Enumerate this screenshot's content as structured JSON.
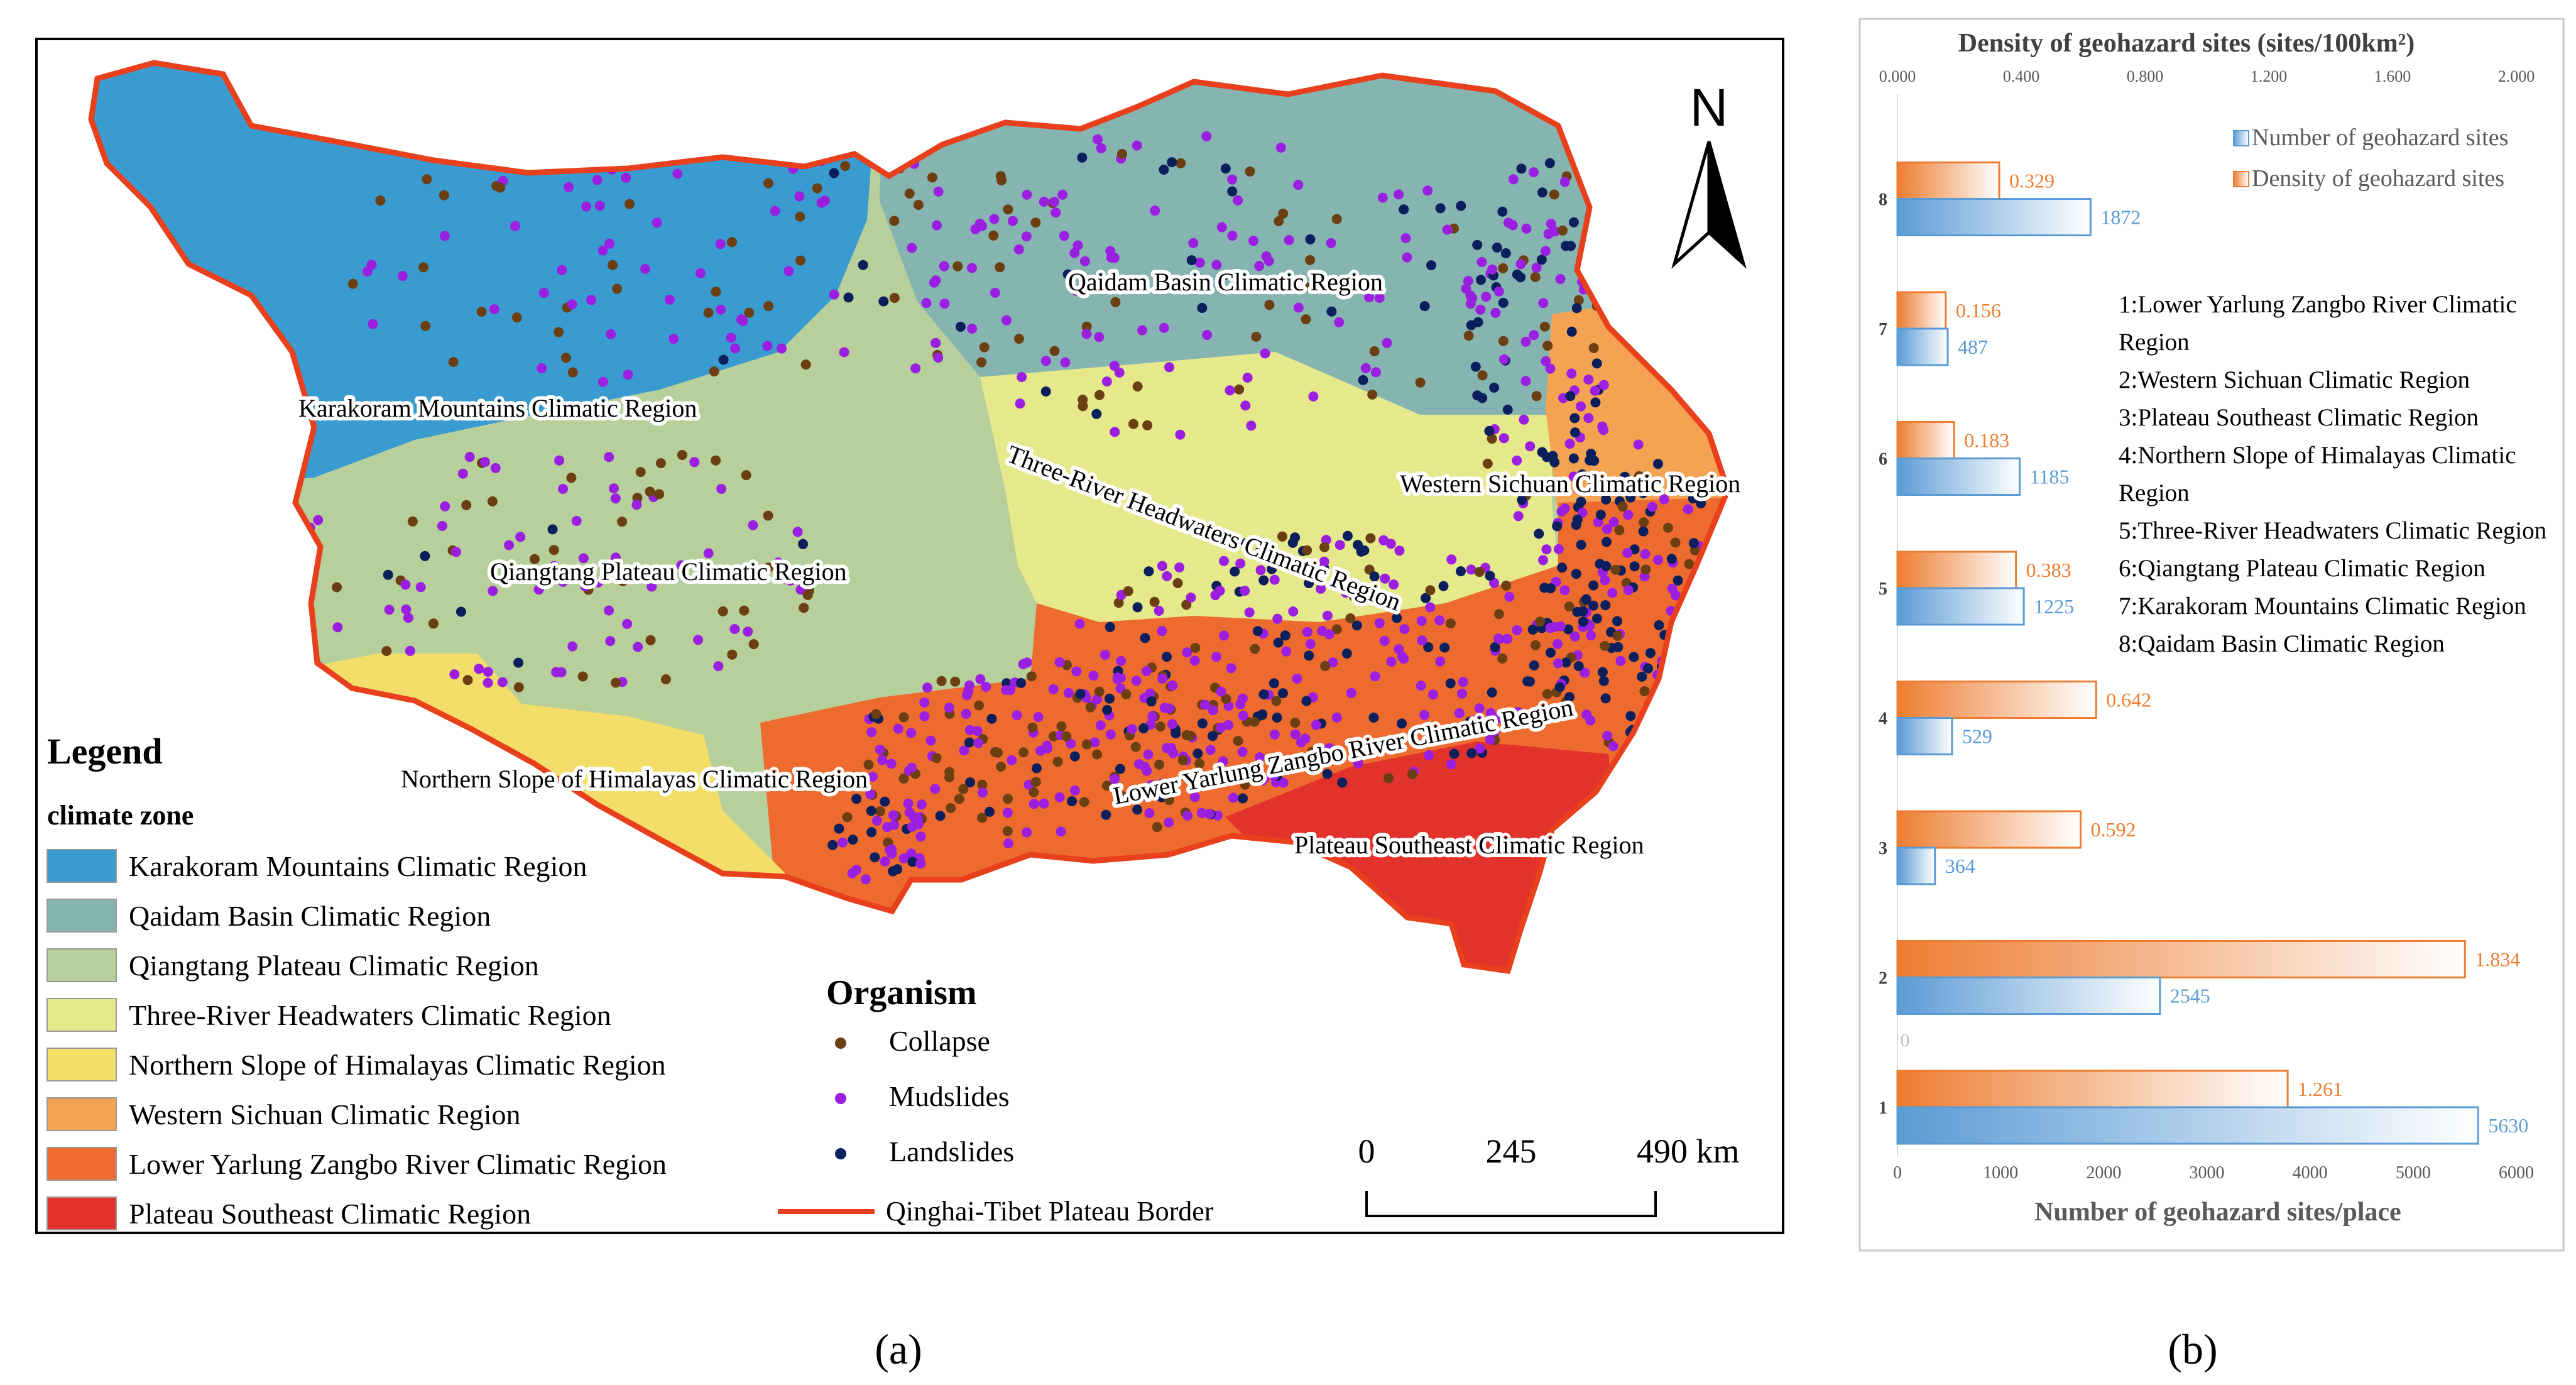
{
  "panel_a": {
    "caption": "(a)",
    "north_label": "N",
    "legend": {
      "title": "Legend",
      "climate_zone_title": "climate zone",
      "zones": [
        {
          "label": "Karakoram Mountains Climatic Region",
          "color": "#3a9bd0"
        },
        {
          "label": "Qaidam Basin Climatic Region",
          "color": "#86b5b1"
        },
        {
          "label": "Qiangtang Plateau Climatic Region",
          "color": "#b7cf9a"
        },
        {
          "label": "Three-River Headwaters Climatic Region",
          "color": "#e6e98b"
        },
        {
          "label": "Northern Slope of Himalayas Climatic Region",
          "color": "#f3de6a"
        },
        {
          "label": "Western Sichuan Climatic Region",
          "color": "#f3a352"
        },
        {
          "label": "Lower Yarlung Zangbo River Climatic Region",
          "color": "#ee6b2f"
        },
        {
          "label": "Plateau Southeast Climatic Region",
          "color": "#e2322c"
        }
      ],
      "organism_title": "Organism",
      "organisms": [
        {
          "label": "Collapse",
          "color": "#6b3f12"
        },
        {
          "label": "Mudslides",
          "color": "#9b1fe0"
        },
        {
          "label": "Landslides",
          "color": "#0b1f5c"
        }
      ],
      "border_label": "Qinghai-Tibet Plateau Border",
      "border_color": "#e8401c"
    },
    "scale_bar": {
      "ticks": [
        "0",
        "245",
        "490 km"
      ]
    },
    "map_labels": {
      "karakoram": "Karakoram Mountains Climatic Region",
      "qaidam": "Qaidam Basin Climatic Region",
      "three_river": "Three-River Headwaters Climatic Region",
      "western_sichuan": "Western Sichuan Climatic Region",
      "qiangtang": "Qiangtang Plateau Climatic Region",
      "northern_slope": "Northern Slope of Himalayas Climatic Region",
      "lower_yarlung": "Lower Yarlung Zangbo River Climatic Region",
      "plateau_southeast": "Plateau Southeast Climatic Region"
    }
  },
  "panel_b": {
    "caption": "(b)",
    "chart_data": {
      "type": "bar",
      "orientation": "horizontal",
      "title": "Density of geohazard sites (sites/100km²)",
      "xlabel": "Number of geohazard sites/place",
      "categories": [
        "1",
        "2",
        "3",
        "4",
        "5",
        "6",
        "7",
        "8"
      ],
      "series": [
        {
          "name": "Number of geohazard sites",
          "color": "#5b9bd5",
          "axis": "bottom",
          "values": [
            5630,
            2545,
            364,
            529,
            1225,
            1185,
            487,
            1872
          ],
          "labels": [
            "5630",
            "2545",
            "364",
            "529",
            "1225",
            "1185",
            "487",
            "1872"
          ]
        },
        {
          "name": "Density of geohazard sites",
          "color": "#ed7d31",
          "axis": "top",
          "values": [
            1.261,
            1.834,
            0.592,
            0.642,
            0.383,
            0.183,
            0.156,
            0.329
          ],
          "labels": [
            "1.261",
            "1.834",
            "0.592",
            "0.642",
            "0.383",
            "0.183",
            "0.156",
            "0.329"
          ]
        }
      ],
      "bottom_axis": {
        "range": [
          0,
          6000
        ],
        "ticks": [
          "0",
          "1000",
          "2000",
          "3000",
          "4000",
          "5000",
          "6000"
        ]
      },
      "top_axis": {
        "range": [
          0,
          2.0
        ],
        "ticks": [
          "0.000",
          "0.400",
          "0.800",
          "1.200",
          "1.600",
          "2.000"
        ]
      },
      "stray_label": "0",
      "category_notes": [
        "1:Lower Yarlung Zangbo River Climatic Region",
        "2:Western Sichuan Climatic Region",
        "3:Plateau Southeast Climatic Region",
        "4:Northern Slope of Himalayas Climatic Region",
        "5:Three-River Headwaters Climatic Region",
        "6:Qiangtang Plateau Climatic Region",
        "7:Karakoram Mountains Climatic Region",
        "8:Qaidam Basin Climatic Region"
      ],
      "legend_position": "top-right"
    }
  }
}
